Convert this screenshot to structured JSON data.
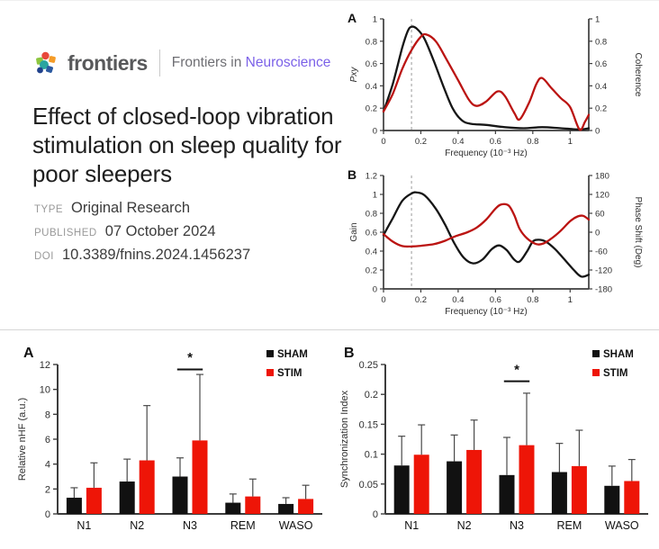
{
  "header": {
    "logo_text": "frontiers",
    "journal_prefix": "Frontiers in",
    "journal_name": "Neuroscience"
  },
  "article": {
    "title": "Effect of closed-loop vibration stimulation on sleep quality for poor sleepers",
    "meta": [
      {
        "label": "TYPE",
        "value": "Original Research"
      },
      {
        "label": "PUBLISHED",
        "value": "07 October 2024"
      },
      {
        "label": "DOI",
        "value": "10.3389/fnins.2024.1456237"
      }
    ]
  },
  "colors": {
    "accent_purple": "#7b61e8",
    "line_black": "#161616",
    "line_red": "#bb1412",
    "bar_black": "#111111",
    "bar_red": "#ee1507",
    "axis": "#3d3d3d",
    "dashed_guide": "#9a9a9a",
    "error_bar": "#4a4a4a"
  },
  "chart_data": [
    {
      "type": "line",
      "name": "psd-coherence-chart",
      "panel_label": "A",
      "xlabel": "Frequency (10⁻³ Hz)",
      "xlim": [
        0,
        1.1
      ],
      "xticks": [
        0,
        0.2,
        0.4,
        0.6,
        0.8,
        1
      ],
      "ylabel_left": "Pxy",
      "ylabel_left_italic": true,
      "ylim_left": [
        0,
        1
      ],
      "yticks_left": [
        0,
        0.2,
        0.4,
        0.6,
        0.8,
        1
      ],
      "ylabel_right": "Coherence",
      "ylim_right": [
        0,
        1
      ],
      "yticks_right": [
        0,
        0.2,
        0.4,
        0.6,
        0.8,
        1
      ],
      "vline_x": 0.15,
      "series": [
        {
          "name": "Pxy",
          "axis": "left",
          "color": "#161616",
          "points": [
            [
              0,
              0.17
            ],
            [
              0.05,
              0.42
            ],
            [
              0.1,
              0.74
            ],
            [
              0.13,
              0.89
            ],
            [
              0.15,
              0.93
            ],
            [
              0.18,
              0.91
            ],
            [
              0.22,
              0.82
            ],
            [
              0.27,
              0.62
            ],
            [
              0.32,
              0.4
            ],
            [
              0.37,
              0.2
            ],
            [
              0.42,
              0.09
            ],
            [
              0.47,
              0.06
            ],
            [
              0.55,
              0.05
            ],
            [
              0.65,
              0.03
            ],
            [
              0.75,
              0.02
            ],
            [
              0.85,
              0.03
            ],
            [
              0.95,
              0.02
            ],
            [
              1.05,
              0.01
            ],
            [
              1.1,
              0.02
            ]
          ]
        },
        {
          "name": "Coherence",
          "axis": "right",
          "color": "#bb1412",
          "points": [
            [
              0,
              0.17
            ],
            [
              0.05,
              0.33
            ],
            [
              0.1,
              0.55
            ],
            [
              0.15,
              0.72
            ],
            [
              0.2,
              0.84
            ],
            [
              0.23,
              0.86
            ],
            [
              0.28,
              0.8
            ],
            [
              0.33,
              0.66
            ],
            [
              0.4,
              0.45
            ],
            [
              0.46,
              0.27
            ],
            [
              0.5,
              0.22
            ],
            [
              0.55,
              0.26
            ],
            [
              0.61,
              0.35
            ],
            [
              0.65,
              0.31
            ],
            [
              0.7,
              0.16
            ],
            [
              0.73,
              0.1
            ],
            [
              0.78,
              0.25
            ],
            [
              0.82,
              0.42
            ],
            [
              0.85,
              0.47
            ],
            [
              0.9,
              0.38
            ],
            [
              0.95,
              0.29
            ],
            [
              1.0,
              0.21
            ],
            [
              1.05,
              0.01
            ],
            [
              1.08,
              0.08
            ],
            [
              1.1,
              0.14
            ]
          ]
        }
      ]
    },
    {
      "type": "line",
      "name": "gain-phase-chart",
      "panel_label": "B",
      "xlabel": "Frequency (10⁻³ Hz)",
      "xlim": [
        0,
        1.1
      ],
      "xticks": [
        0,
        0.2,
        0.4,
        0.6,
        0.8,
        1
      ],
      "ylabel_left": "Gain",
      "ylabel_left_italic": false,
      "ylim_left": [
        0,
        1.2
      ],
      "yticks_left": [
        0,
        0.2,
        0.4,
        0.6,
        0.8,
        1,
        1.2
      ],
      "ylabel_right": "Phase Shift (Deg)",
      "ylim_right": [
        -180,
        180
      ],
      "yticks_right": [
        -180,
        -120,
        -60,
        0,
        60,
        120,
        180
      ],
      "vline_x": 0.15,
      "series": [
        {
          "name": "Gain",
          "axis": "left",
          "color": "#161616",
          "points": [
            [
              0,
              0.57
            ],
            [
              0.05,
              0.75
            ],
            [
              0.1,
              0.93
            ],
            [
              0.15,
              1.01
            ],
            [
              0.18,
              1.02
            ],
            [
              0.22,
              0.99
            ],
            [
              0.28,
              0.85
            ],
            [
              0.33,
              0.68
            ],
            [
              0.38,
              0.48
            ],
            [
              0.43,
              0.33
            ],
            [
              0.48,
              0.27
            ],
            [
              0.53,
              0.31
            ],
            [
              0.58,
              0.42
            ],
            [
              0.62,
              0.46
            ],
            [
              0.66,
              0.41
            ],
            [
              0.7,
              0.31
            ],
            [
              0.73,
              0.29
            ],
            [
              0.77,
              0.4
            ],
            [
              0.8,
              0.5
            ],
            [
              0.83,
              0.52
            ],
            [
              0.87,
              0.5
            ],
            [
              0.92,
              0.42
            ],
            [
              0.97,
              0.31
            ],
            [
              1.02,
              0.2
            ],
            [
              1.06,
              0.13
            ],
            [
              1.1,
              0.15
            ]
          ]
        },
        {
          "name": "Phase Shift",
          "axis": "right",
          "color": "#bb1412",
          "points": [
            [
              0,
              -6
            ],
            [
              0.05,
              -30
            ],
            [
              0.1,
              -44
            ],
            [
              0.15,
              -45
            ],
            [
              0.2,
              -43
            ],
            [
              0.27,
              -38
            ],
            [
              0.33,
              -27
            ],
            [
              0.38,
              -14
            ],
            [
              0.45,
              0
            ],
            [
              0.5,
              15
            ],
            [
              0.55,
              40
            ],
            [
              0.6,
              75
            ],
            [
              0.63,
              88
            ],
            [
              0.67,
              85
            ],
            [
              0.7,
              55
            ],
            [
              0.73,
              10
            ],
            [
              0.77,
              -20
            ],
            [
              0.82,
              -38
            ],
            [
              0.86,
              -35
            ],
            [
              0.9,
              -20
            ],
            [
              0.95,
              5
            ],
            [
              1.0,
              35
            ],
            [
              1.04,
              50
            ],
            [
              1.07,
              52
            ],
            [
              1.1,
              40
            ]
          ]
        }
      ]
    },
    {
      "type": "bar",
      "name": "relative-nhf-chart",
      "panel_label": "A",
      "ylabel": "Relative nHF (a.u.)",
      "ylim": [
        0,
        12
      ],
      "yticks": [
        0,
        2,
        4,
        6,
        8,
        10,
        12
      ],
      "categories": [
        "N1",
        "N2",
        "N3",
        "REM",
        "WASO"
      ],
      "series": [
        {
          "name": "SHAM",
          "color": "#111111",
          "values": [
            1.3,
            2.6,
            3.0,
            0.9,
            0.8
          ],
          "errors": [
            0.8,
            1.8,
            1.5,
            0.7,
            0.5
          ]
        },
        {
          "name": "STIM",
          "color": "#ee1507",
          "values": [
            2.1,
            4.3,
            5.9,
            1.4,
            1.2
          ],
          "errors": [
            2.0,
            4.4,
            5.3,
            1.4,
            1.1
          ]
        }
      ],
      "significance": {
        "category": "N3",
        "marker": "*",
        "line_y": 11.6,
        "star_y": 12.5
      },
      "legend": [
        "SHAM",
        "STIM"
      ]
    },
    {
      "type": "bar",
      "name": "synchronization-index-chart",
      "panel_label": "B",
      "ylabel": "Synchronization Index",
      "ylim": [
        0,
        0.25
      ],
      "yticks": [
        0,
        0.05,
        0.1,
        0.15,
        0.2,
        0.25
      ],
      "categories": [
        "N1",
        "N2",
        "N3",
        "REM",
        "WASO"
      ],
      "series": [
        {
          "name": "SHAM",
          "color": "#111111",
          "values": [
            0.081,
            0.088,
            0.065,
            0.07,
            0.047
          ],
          "errors": [
            0.049,
            0.044,
            0.063,
            0.048,
            0.033
          ]
        },
        {
          "name": "STIM",
          "color": "#ee1507",
          "values": [
            0.099,
            0.107,
            0.115,
            0.08,
            0.055
          ],
          "errors": [
            0.05,
            0.05,
            0.087,
            0.06,
            0.036
          ]
        }
      ],
      "significance": {
        "category": "N3",
        "marker": "*",
        "line_y": 0.222,
        "star_y": 0.24
      },
      "legend": [
        "SHAM",
        "STIM"
      ]
    }
  ]
}
